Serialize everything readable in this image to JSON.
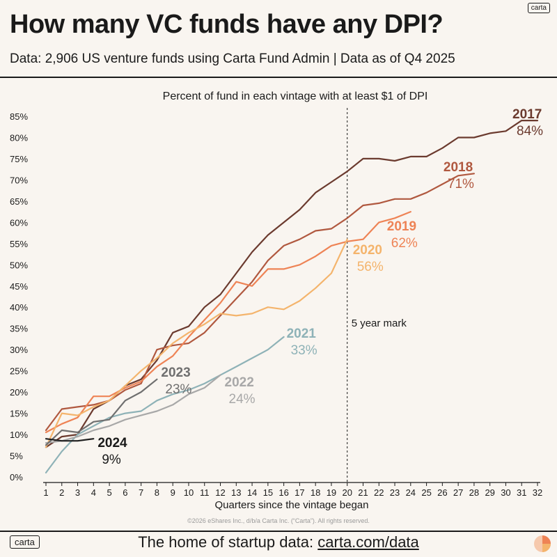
{
  "header": {
    "brand": "carta",
    "title": "How many VC funds have any DPI?",
    "subtitle": "Data: 2,906 US venture funds using Carta Fund Admin | Data as of Q4 2025"
  },
  "footer": {
    "logo": "carta",
    "text": "The home of startup data: ",
    "url": "carta.com/data",
    "copyright": "©2026 eShares Inc., d/b/a Carta Inc. (“Carta”). All rights reserved."
  },
  "chart_data": {
    "type": "line",
    "title": "Percent of fund in each vintage with at least $1 of DPI",
    "xlabel": "Quarters since the vintage began",
    "ylabel": "",
    "xlim": [
      1,
      32
    ],
    "ylim": [
      0,
      85
    ],
    "x_ticks": [
      1,
      2,
      3,
      4,
      5,
      6,
      7,
      8,
      9,
      10,
      11,
      12,
      13,
      14,
      15,
      16,
      17,
      18,
      19,
      20,
      21,
      22,
      23,
      24,
      25,
      26,
      27,
      28,
      29,
      30,
      31,
      32
    ],
    "y_ticks": [
      0,
      5,
      10,
      15,
      20,
      25,
      30,
      35,
      40,
      45,
      50,
      55,
      60,
      65,
      70,
      75,
      80,
      85
    ],
    "y_tick_suffix": "%",
    "grid": false,
    "annotation": {
      "x": 20,
      "label": "5 year mark",
      "style": "dashed"
    },
    "series": [
      {
        "name": "2017",
        "end_label": "84%",
        "color": "#6b3a2e",
        "values": [
          7,
          9.5,
          10,
          16,
          18,
          21.5,
          23,
          27.5,
          34,
          35.5,
          40,
          43,
          48,
          53,
          57,
          60,
          63,
          67,
          69.5,
          72,
          75,
          75,
          74.5,
          75.5,
          75.5,
          77.5,
          80,
          80,
          81,
          81.5,
          84,
          84
        ]
      },
      {
        "name": "2018",
        "end_label": "71%",
        "color": "#b0583f",
        "values": [
          11,
          16,
          16.5,
          17,
          18,
          20.5,
          22,
          30,
          31,
          31.5,
          34,
          38,
          42,
          46,
          51,
          54.5,
          56,
          58,
          58.5,
          61,
          64,
          64.5,
          65.5,
          65.5,
          67,
          69,
          71,
          71.5
        ]
      },
      {
        "name": "2019",
        "end_label": "62%",
        "color": "#ee8355",
        "values": [
          10.5,
          12.5,
          14,
          19,
          19,
          21,
          22.5,
          26,
          28.5,
          33,
          37,
          41,
          46,
          45,
          49,
          49,
          50,
          52,
          54.5,
          55.5,
          56,
          60,
          61,
          62.5
        ]
      },
      {
        "name": "2020",
        "end_label": "56%",
        "color": "#f4b46c",
        "values": [
          7,
          15,
          14.5,
          16.5,
          18,
          21.5,
          25,
          28,
          31.5,
          34,
          36,
          38.5,
          38,
          38.5,
          40,
          39.5,
          41.5,
          44.5,
          48,
          56
        ]
      },
      {
        "name": "2021",
        "end_label": "33%",
        "color": "#8eb2b7",
        "values": [
          1,
          6,
          10,
          12,
          14,
          15,
          15.5,
          18,
          19.5,
          20.5,
          22,
          24,
          26,
          28,
          30,
          33
        ]
      },
      {
        "name": "2022",
        "end_label": "24%",
        "color": "#a8a8a8",
        "values": [
          8,
          8.5,
          9.5,
          11,
          12,
          13.5,
          14.5,
          15.5,
          17,
          19.5,
          21,
          24
        ]
      },
      {
        "name": "2023",
        "end_label": "23%",
        "color": "#6f6f6f",
        "values": [
          7.5,
          11,
          10.5,
          13,
          13.5,
          18,
          20,
          23
        ]
      },
      {
        "name": "2024",
        "end_label": "9%",
        "color": "#1f1f1f",
        "values": [
          9,
          8.5,
          8.5,
          9
        ]
      }
    ]
  }
}
